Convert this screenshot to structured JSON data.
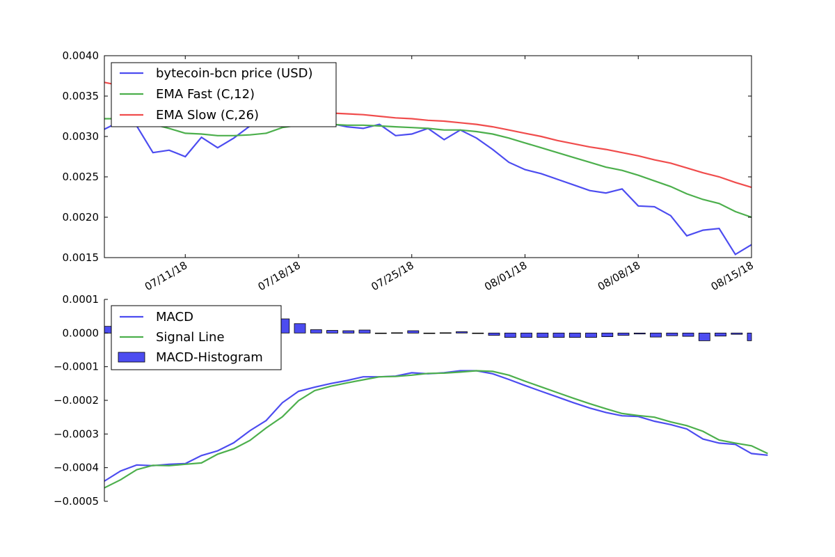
{
  "chart_data": [
    {
      "type": "line",
      "title": "",
      "xlabel": "",
      "ylabel": "",
      "x": [
        "07/06/18",
        "07/07/18",
        "07/08/18",
        "07/09/18",
        "07/10/18",
        "07/11/18",
        "07/12/18",
        "07/13/18",
        "07/14/18",
        "07/15/18",
        "07/16/18",
        "07/17/18",
        "07/18/18",
        "07/19/18",
        "07/20/18",
        "07/21/18",
        "07/22/18",
        "07/23/18",
        "07/24/18",
        "07/25/18",
        "07/26/18",
        "07/27/18",
        "07/28/18",
        "07/29/18",
        "07/30/18",
        "07/31/18",
        "08/01/18",
        "08/02/18",
        "08/03/18",
        "08/04/18",
        "08/05/18",
        "08/06/18",
        "08/07/18",
        "08/08/18",
        "08/09/18",
        "08/10/18",
        "08/11/18",
        "08/12/18",
        "08/13/18",
        "08/14/18",
        "08/15/18"
      ],
      "xticks": [
        "07/11/18",
        "07/18/18",
        "07/25/18",
        "08/01/18",
        "08/08/18",
        "08/15/18"
      ],
      "ylim": [
        0.0015,
        0.004
      ],
      "yticks": [
        "0.0040",
        "0.0035",
        "0.0030",
        "0.0025",
        "0.0020",
        "0.0015"
      ],
      "legend": "top-left",
      "series": [
        {
          "name": "bytecoin-bcn price (USD)",
          "color": "#4c4cf0",
          "values": [
            0.00309,
            0.00319,
            0.00313,
            0.0028,
            0.00283,
            0.00275,
            0.00299,
            0.00286,
            0.00298,
            0.00313,
            0.00316,
            0.00318,
            0.0032,
            0.00319,
            0.00316,
            0.00312,
            0.0031,
            0.00315,
            0.00301,
            0.00303,
            0.0031,
            0.00296,
            0.00308,
            0.00298,
            0.00284,
            0.00268,
            0.00259,
            0.00254,
            0.00247,
            0.0024,
            0.00233,
            0.0023,
            0.00235,
            0.00214,
            0.00213,
            0.00202,
            0.00177,
            0.00184,
            0.00186,
            0.00154,
            0.00166
          ]
        },
        {
          "name": "EMA Fast (C,12)",
          "color": "#4caf4c",
          "values": [
            0.00322,
            0.00322,
            0.00318,
            0.00315,
            0.0031,
            0.00304,
            0.00303,
            0.00301,
            0.00301,
            0.00302,
            0.00304,
            0.00311,
            0.00314,
            0.00315,
            0.00315,
            0.00314,
            0.00314,
            0.00313,
            0.00312,
            0.00311,
            0.0031,
            0.00308,
            0.00308,
            0.00306,
            0.00303,
            0.00298,
            0.00292,
            0.00286,
            0.0028,
            0.00274,
            0.00268,
            0.00262,
            0.00258,
            0.00252,
            0.00245,
            0.00238,
            0.00229,
            0.00222,
            0.00217,
            0.00207,
            0.002
          ]
        },
        {
          "name": "EMA Slow (C,26)",
          "color": "#f04c4c",
          "values": [
            0.00367,
            0.00363,
            0.00358,
            0.00353,
            0.00348,
            0.00344,
            0.00341,
            0.00339,
            0.00337,
            0.00335,
            0.00334,
            0.00333,
            0.00332,
            0.0033,
            0.00329,
            0.00328,
            0.00327,
            0.00325,
            0.00323,
            0.00322,
            0.0032,
            0.00319,
            0.00317,
            0.00315,
            0.00312,
            0.00308,
            0.00304,
            0.003,
            0.00295,
            0.00291,
            0.00287,
            0.00284,
            0.0028,
            0.00276,
            0.00271,
            0.00267,
            0.00261,
            0.00255,
            0.0025,
            0.00243,
            0.00237
          ]
        }
      ]
    },
    {
      "type": "line",
      "title": "",
      "xlabel": "",
      "ylabel": "",
      "ylim": [
        -0.0005,
        0.0001
      ],
      "yticks": [
        "0.0001",
        "0.0000",
        "−0.0001",
        "−0.0002",
        "−0.0003",
        "−0.0004",
        "−0.0005"
      ],
      "legend": "top-left",
      "series": [
        {
          "name": "MACD",
          "color": "#4c4cf0",
          "values": [
            -0.00044,
            -0.00041,
            -0.000392,
            -0.000394,
            -0.00039,
            -0.000388,
            -0.000364,
            -0.00035,
            -0.000326,
            -0.00029,
            -0.00026,
            -0.000207,
            -0.000173,
            -0.000161,
            -0.00015,
            -0.000141,
            -0.00013,
            -0.00013,
            -0.000128,
            -0.000118,
            -0.000121,
            -0.000118,
            -0.000112,
            -0.000112,
            -0.000121,
            -0.000138,
            -0.000156,
            -0.000173,
            -0.00019,
            -0.000207,
            -0.000223,
            -0.000236,
            -0.000246,
            -0.000248,
            -0.000262,
            -0.000272,
            -0.000285,
            -0.000315,
            -0.000327,
            -0.000331,
            -0.000358,
            -0.000363
          ]
        },
        {
          "name": "Signal Line",
          "color": "#4caf4c",
          "values": [
            -0.00046,
            -0.000436,
            -0.000406,
            -0.000393,
            -0.000394,
            -0.00039,
            -0.000386,
            -0.00036,
            -0.000344,
            -0.000319,
            -0.000282,
            -0.000249,
            -0.000201,
            -0.000171,
            -0.000158,
            -0.000148,
            -0.000139,
            -0.00013,
            -0.000129,
            -0.000125,
            -0.00012,
            -0.000119,
            -0.000116,
            -0.000112,
            -0.000114,
            -0.000125,
            -0.000143,
            -0.00016,
            -0.000177,
            -0.000194,
            -0.00021,
            -0.000225,
            -0.000239,
            -0.000245,
            -0.00025,
            -0.000264,
            -0.000275,
            -0.000292,
            -0.000318,
            -0.000327,
            -0.000335,
            -0.000358
          ]
        },
        {
          "name": "MACD-Histogram",
          "color": "#4c4cf0",
          "kind": "bar",
          "values": [
            2e-05,
            2.6e-05,
            1.4e-05,
            -1e-06,
            4e-06,
            2e-06,
            2.2e-05,
            1e-05,
            1.8e-05,
            2.9e-05,
            2.2e-05,
            4.2e-05,
            2.8e-05,
            1e-05,
            8e-06,
            7e-06,
            9e-06,
            0.0,
            1e-06,
            7e-06,
            -1e-06,
            1e-06,
            4e-06,
            -0.0,
            -7e-06,
            -1.3e-05,
            -1.3e-05,
            -1.3e-05,
            -1.3e-05,
            -1.3e-05,
            -1.3e-05,
            -1.1e-05,
            -7e-06,
            -3e-06,
            -1.2e-05,
            -8e-06,
            -1e-05,
            -2.3e-05,
            -9e-06,
            -4e-06,
            -2.3e-05,
            -5e-06
          ]
        }
      ]
    }
  ]
}
